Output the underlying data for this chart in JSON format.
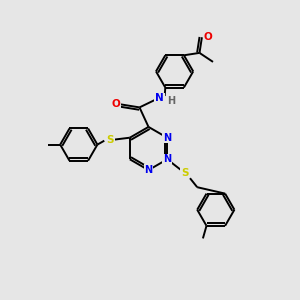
{
  "background_color": "#e6e6e6",
  "bond_color": "#000000",
  "atom_colors": {
    "N": "#0000ee",
    "O": "#ee0000",
    "S": "#cccc00",
    "C": "#000000",
    "H": "#666666"
  },
  "figsize": [
    3.0,
    3.0
  ],
  "dpi": 100
}
